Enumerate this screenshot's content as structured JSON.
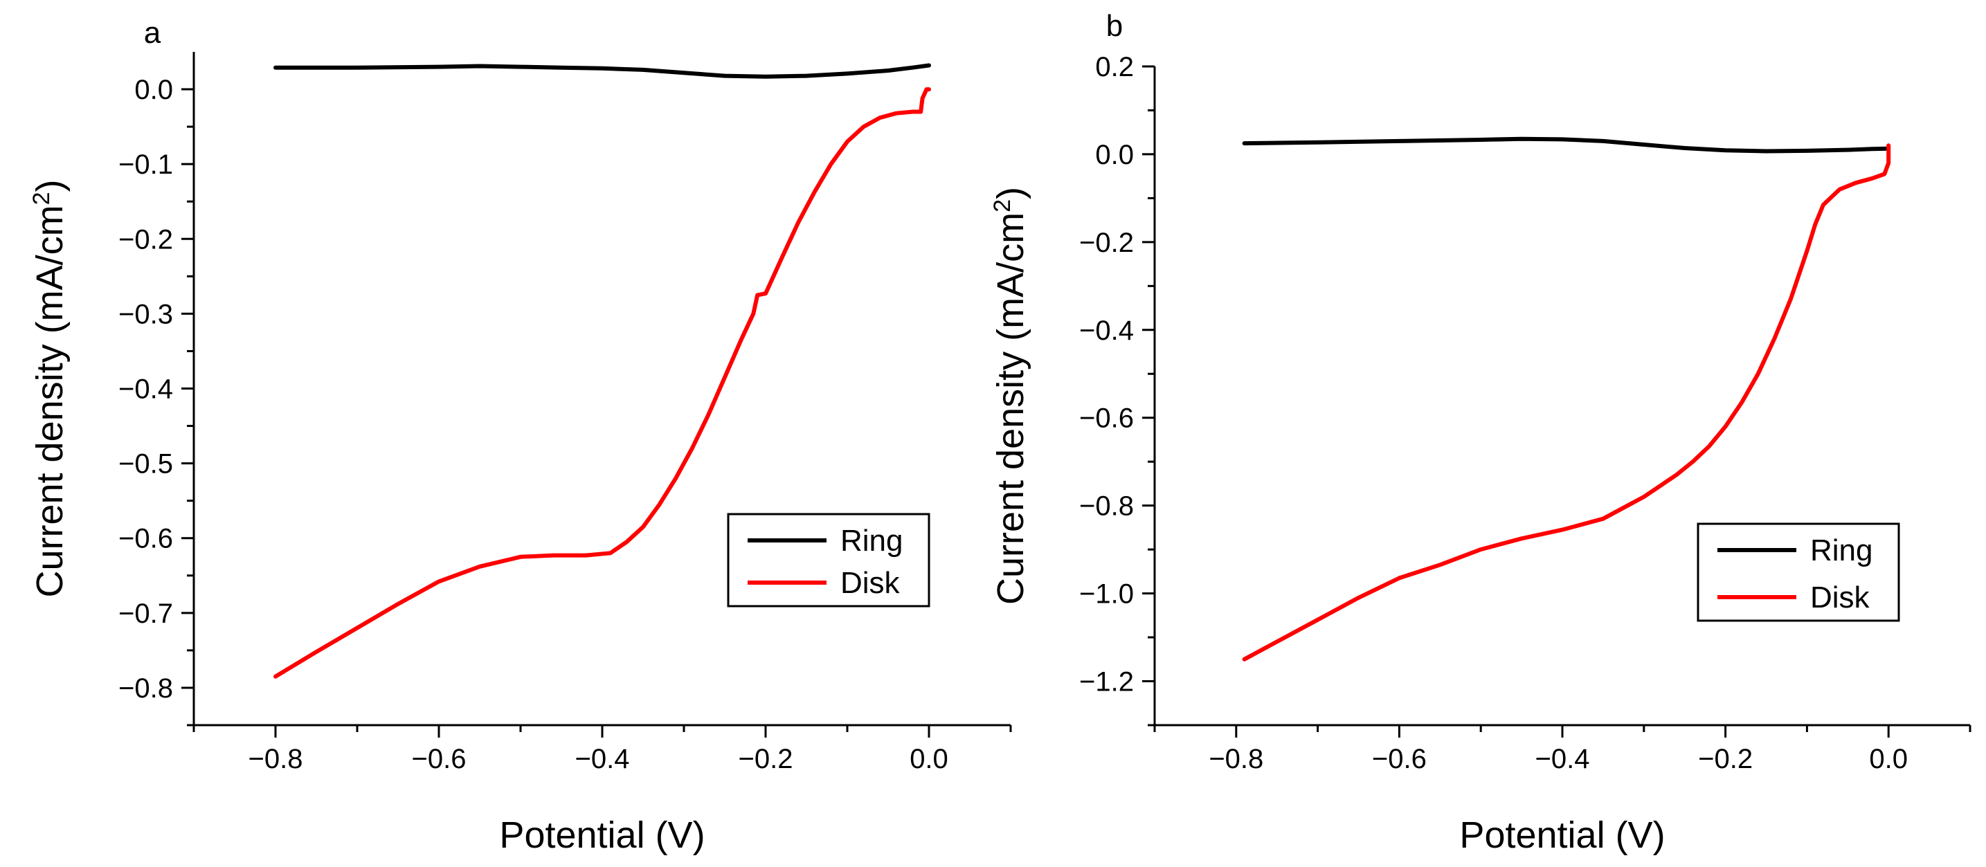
{
  "chart_data": [
    {
      "type": "line",
      "panel_label": "a",
      "xlabel": "Potential (V)",
      "ylabel_main": "Current density (mA/cm",
      "ylabel_sup": "2",
      "ylabel_end": ")",
      "xlim": [
        -0.9,
        0.1
      ],
      "ylim": [
        -0.85,
        0.05
      ],
      "xticks": [
        -0.8,
        -0.6,
        -0.4,
        -0.2,
        0.0
      ],
      "xtick_labels": [
        "−0.8",
        "−0.6",
        "−0.4",
        "−0.2",
        "0.0"
      ],
      "yticks": [
        0.0,
        -0.1,
        -0.2,
        -0.3,
        -0.4,
        -0.5,
        -0.6,
        -0.7,
        -0.8
      ],
      "ytick_labels": [
        "0.0",
        "−0.1",
        "−0.2",
        "−0.3",
        "−0.4",
        "−0.5",
        "−0.6",
        "−0.7",
        "−0.8"
      ],
      "legend_position": "right",
      "series": [
        {
          "name": "Ring",
          "color": "#000000",
          "x": [
            -0.8,
            -0.7,
            -0.6,
            -0.55,
            -0.5,
            -0.45,
            -0.4,
            -0.35,
            -0.3,
            -0.25,
            -0.2,
            -0.15,
            -0.1,
            -0.05,
            -0.02,
            0.0
          ],
          "y": [
            0.029,
            0.029,
            0.03,
            0.031,
            0.03,
            0.029,
            0.028,
            0.026,
            0.022,
            0.018,
            0.017,
            0.018,
            0.021,
            0.025,
            0.029,
            0.032
          ]
        },
        {
          "name": "Disk",
          "color": "#ff0000",
          "x": [
            -0.8,
            -0.75,
            -0.7,
            -0.65,
            -0.6,
            -0.55,
            -0.5,
            -0.46,
            -0.42,
            -0.39,
            -0.37,
            -0.35,
            -0.33,
            -0.31,
            -0.29,
            -0.27,
            -0.25,
            -0.23,
            -0.215,
            -0.21,
            -0.2,
            -0.18,
            -0.16,
            -0.14,
            -0.12,
            -0.1,
            -0.08,
            -0.06,
            -0.04,
            -0.02,
            -0.01,
            -0.008,
            -0.003,
            0.0
          ],
          "y": [
            -0.785,
            -0.752,
            -0.72,
            -0.688,
            -0.658,
            -0.638,
            -0.625,
            -0.623,
            -0.623,
            -0.62,
            -0.605,
            -0.585,
            -0.555,
            -0.52,
            -0.48,
            -0.435,
            -0.385,
            -0.335,
            -0.3,
            -0.275,
            -0.273,
            -0.225,
            -0.178,
            -0.137,
            -0.1,
            -0.07,
            -0.05,
            -0.038,
            -0.032,
            -0.03,
            -0.03,
            -0.012,
            0.0,
            0.0
          ]
        }
      ]
    },
    {
      "type": "line",
      "panel_label": "b",
      "xlabel": "Potential (V)",
      "ylabel_main": "Current density (mA/cm",
      "ylabel_sup": "2",
      "ylabel_end": ")",
      "xlim": [
        -0.9,
        0.1
      ],
      "ylim": [
        -1.3,
        0.2
      ],
      "xticks": [
        -0.8,
        -0.6,
        -0.4,
        -0.2,
        0.0
      ],
      "xtick_labels": [
        "−0.8",
        "−0.6",
        "−0.4",
        "−0.2",
        "0.0"
      ],
      "yticks": [
        0.2,
        0.0,
        -0.2,
        -0.4,
        -0.6,
        -0.8,
        -1.0,
        -1.2
      ],
      "ytick_labels": [
        "0.2",
        "0.0",
        "−0.2",
        "−0.4",
        "−0.6",
        "−0.8",
        "−1.0",
        "−1.2"
      ],
      "legend_position": "right",
      "series": [
        {
          "name": "Ring",
          "color": "#000000",
          "x": [
            -0.79,
            -0.7,
            -0.6,
            -0.5,
            -0.45,
            -0.4,
            -0.35,
            -0.3,
            -0.25,
            -0.2,
            -0.15,
            -0.1,
            -0.05,
            -0.02,
            0.0
          ],
          "y": [
            0.025,
            0.027,
            0.03,
            0.033,
            0.035,
            0.034,
            0.03,
            0.022,
            0.014,
            0.009,
            0.007,
            0.008,
            0.01,
            0.012,
            0.013
          ]
        },
        {
          "name": "Disk",
          "color": "#ff0000",
          "x": [
            -0.79,
            -0.75,
            -0.7,
            -0.65,
            -0.6,
            -0.55,
            -0.5,
            -0.45,
            -0.4,
            -0.35,
            -0.32,
            -0.3,
            -0.28,
            -0.26,
            -0.24,
            -0.22,
            -0.2,
            -0.18,
            -0.16,
            -0.14,
            -0.12,
            -0.1,
            -0.09,
            -0.08,
            -0.06,
            -0.04,
            -0.02,
            -0.005,
            0.0,
            0.0
          ],
          "y": [
            -1.15,
            -1.11,
            -1.06,
            -1.01,
            -0.965,
            -0.935,
            -0.9,
            -0.875,
            -0.855,
            -0.83,
            -0.8,
            -0.78,
            -0.755,
            -0.73,
            -0.7,
            -0.665,
            -0.62,
            -0.565,
            -0.5,
            -0.42,
            -0.33,
            -0.22,
            -0.16,
            -0.115,
            -0.08,
            -0.065,
            -0.055,
            -0.045,
            -0.02,
            0.02
          ]
        }
      ]
    }
  ]
}
